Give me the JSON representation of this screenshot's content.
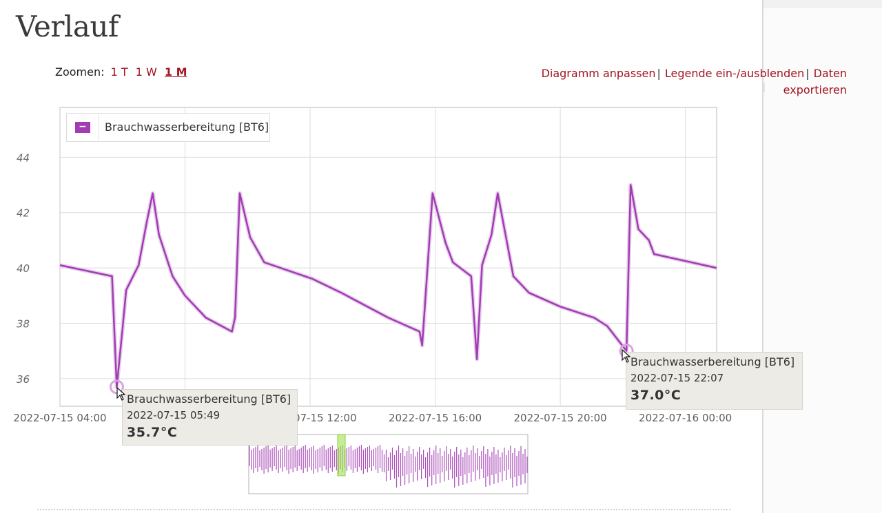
{
  "page": {
    "title": "Verlauf"
  },
  "zoom": {
    "label": "Zoomen:",
    "options": [
      "1 T",
      "1 W",
      "1 M"
    ],
    "active": "1 M"
  },
  "actions": {
    "customize": "Diagramm anpassen",
    "toggle_legend": "Legende ein-/ausblenden",
    "export": "Daten exportieren",
    "separator": "|"
  },
  "colors": {
    "series": "#a23cb3",
    "link": "#a1141f",
    "navigator_window": "#a6e35d"
  },
  "chart_data": {
    "type": "line",
    "title": "",
    "xlabel": "",
    "ylabel": "",
    "ylim": [
      35.0,
      45.8
    ],
    "xlim": [
      "2022-07-15 04:00",
      "2022-07-16 01:00"
    ],
    "yticks": [
      "44",
      "42",
      "40",
      "38",
      "36"
    ],
    "xticks": [
      "2022-07-15 04:00",
      "2022-07-15 08:00",
      "2022-07-15 12:00",
      "2022-07-15 16:00",
      "2022-07-15 20:00",
      "2022-07-16 00:00"
    ],
    "grid": true,
    "legend_position": "top-left",
    "series": [
      {
        "name": "Brauchwasserbereitung [BT6]",
        "points": [
          [
            "2022-07-15 04:00",
            40.1
          ],
          [
            "2022-07-15 05:40",
            39.7
          ],
          [
            "2022-07-15 05:49",
            35.7
          ],
          [
            "2022-07-15 06:00",
            37.8
          ],
          [
            "2022-07-15 06:07",
            39.2
          ],
          [
            "2022-07-15 06:31",
            40.1
          ],
          [
            "2022-07-15 06:47",
            41.7
          ],
          [
            "2022-07-15 06:58",
            42.7
          ],
          [
            "2022-07-15 07:10",
            41.2
          ],
          [
            "2022-07-15 07:36",
            39.7
          ],
          [
            "2022-07-15 08:00",
            39.0
          ],
          [
            "2022-07-15 08:40",
            38.2
          ],
          [
            "2022-07-15 09:30",
            37.7
          ],
          [
            "2022-07-15 09:36",
            38.2
          ],
          [
            "2022-07-15 09:45",
            42.7
          ],
          [
            "2022-07-15 10:05",
            41.1
          ],
          [
            "2022-07-15 10:32",
            40.2
          ],
          [
            "2022-07-15 12:05",
            39.6
          ],
          [
            "2022-07-15 13:00",
            39.1
          ],
          [
            "2022-07-15 14:30",
            38.2
          ],
          [
            "2022-07-15 15:30",
            37.7
          ],
          [
            "2022-07-15 15:35",
            37.2
          ],
          [
            "2022-07-15 15:55",
            42.7
          ],
          [
            "2022-07-15 16:20",
            40.9
          ],
          [
            "2022-07-15 16:34",
            40.2
          ],
          [
            "2022-07-15 17:09",
            39.7
          ],
          [
            "2022-07-15 17:20",
            36.7
          ],
          [
            "2022-07-15 17:30",
            40.1
          ],
          [
            "2022-07-15 17:48",
            41.2
          ],
          [
            "2022-07-15 18:00",
            42.7
          ],
          [
            "2022-07-15 18:30",
            39.7
          ],
          [
            "2022-07-15 19:00",
            39.1
          ],
          [
            "2022-07-15 20:00",
            38.6
          ],
          [
            "2022-07-15 21:05",
            38.2
          ],
          [
            "2022-07-15 21:30",
            37.9
          ],
          [
            "2022-07-15 22:07",
            37.0
          ],
          [
            "2022-07-15 22:15",
            43.0
          ],
          [
            "2022-07-15 22:30",
            41.4
          ],
          [
            "2022-07-15 22:50",
            41.0
          ],
          [
            "2022-07-15 23:00",
            40.5
          ],
          [
            "2022-07-16 01:00",
            40.0
          ]
        ]
      }
    ],
    "highlighted_points": [
      {
        "x": "2022-07-15 05:49",
        "y": 35.7,
        "time": "2022-07-15 05:49",
        "value": "35.7°C",
        "series": "Brauchwasserbereitung [BT6]"
      },
      {
        "x": "2022-07-15 22:07",
        "y": 37.0,
        "time": "2022-07-15 22:07",
        "value": "37.0°C",
        "series": "Brauchwasserbereitung [BT6]"
      }
    ],
    "navigator": {
      "window_position": "left-center"
    }
  },
  "legend": {
    "toggle_symbol": "−",
    "label": "Brauchwasserbereitung [BT6]"
  },
  "tooltips": [
    {
      "series": "Brauchwasserbereitung [BT6]",
      "time": "2022-07-15 05:49",
      "value": "35.7°C"
    },
    {
      "series": "Brauchwasserbereitung [BT6]",
      "time": "2022-07-15 22:07",
      "value": "37.0°C"
    }
  ]
}
